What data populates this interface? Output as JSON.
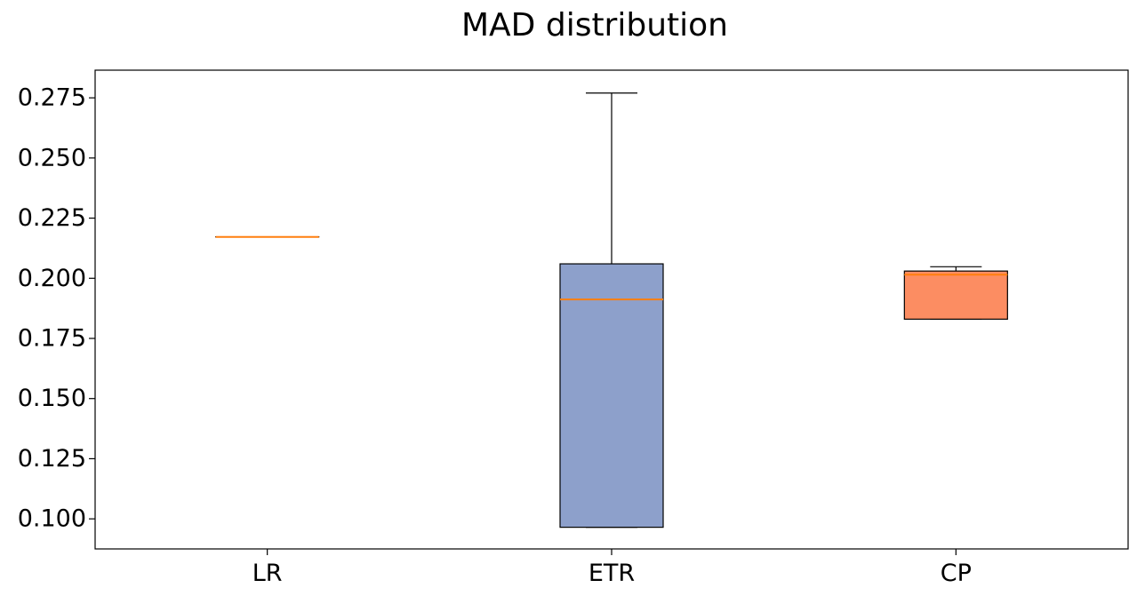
{
  "chart_data": {
    "type": "box",
    "title": "MAD distribution",
    "xlabel": "",
    "ylabel": "",
    "categories": [
      "LR",
      "ETR",
      "CP"
    ],
    "ylim": [
      0.0875,
      0.2865
    ],
    "yticks": [
      "0.100",
      "0.125",
      "0.150",
      "0.175",
      "0.200",
      "0.225",
      "0.250",
      "0.275"
    ],
    "grid": false,
    "boxes": [
      {
        "name": "LR",
        "whisker_low": 0.2172,
        "q1": 0.2172,
        "median": 0.2172,
        "q3": 0.2172,
        "whisker_high": 0.2172,
        "fill_color": "#fc8d62",
        "median_color": "#ff7f0e"
      },
      {
        "name": "ETR",
        "whisker_low": 0.0965,
        "q1": 0.0965,
        "median": 0.1912,
        "q3": 0.206,
        "whisker_high": 0.277,
        "fill_color": "#8da0cb",
        "median_color": "#ff7f0e"
      },
      {
        "name": "CP",
        "whisker_low": 0.183,
        "q1": 0.183,
        "median": 0.2015,
        "q3": 0.203,
        "whisker_high": 0.2048,
        "fill_color": "#fc8d62",
        "median_color": "#ff7f0e"
      }
    ]
  }
}
